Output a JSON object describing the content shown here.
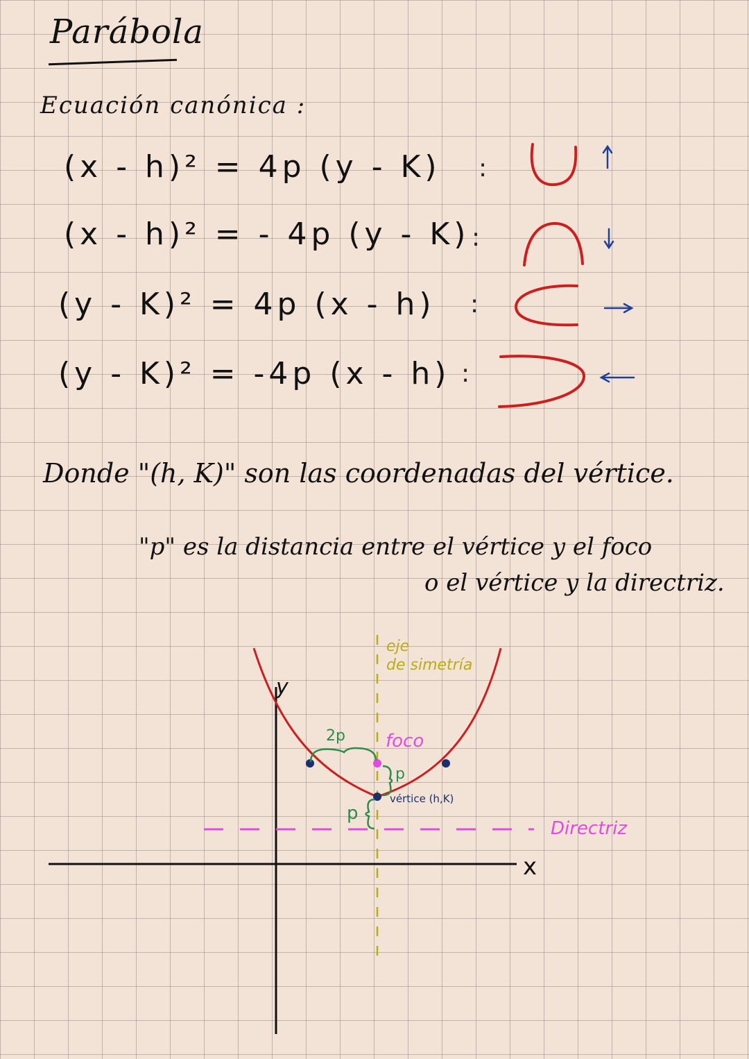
{
  "title": "Parábola",
  "subtitle": "Ecuación canónica :",
  "equations": [
    {
      "text": "(x - h)² = 4p (y - K)",
      "colon": ":",
      "direction": "up-arrow"
    },
    {
      "text": "(x - h)² = - 4p (y - K)",
      "colon": ":",
      "direction": "down-arrow"
    },
    {
      "text": "(y - K)² = 4p (x - h)",
      "colon": ":",
      "direction": "right-arrow"
    },
    {
      "text": "(y - K)² = -4p (x - h)",
      "colon": ":",
      "direction": "left-arrow"
    }
  ],
  "notes": {
    "vertex": "Donde \"(h, K)\" son las coordenadas del vértice.",
    "distance_1": "\"p\" es la distancia entre el vértice y el foco",
    "distance_2": "o el vértice y la directriz."
  },
  "diagram": {
    "y_axis": "y",
    "x_axis": "x",
    "axis_of_symmetry_line1": "eje",
    "axis_of_symmetry_line2": "de simetría",
    "focus": "foco",
    "latus": "2p",
    "p_upper": "p",
    "p_lower": "p",
    "vertex": "vértice (h,K)",
    "directrix": "Directriz"
  },
  "colors": {
    "curve": "#cc1f1f",
    "arrow": "#1f3f99",
    "axis_of_symmetry": "#b9ad12",
    "focus": "#e24be0",
    "brace": "#2e8b4a",
    "vertex_dot": "#1a2f6b"
  }
}
